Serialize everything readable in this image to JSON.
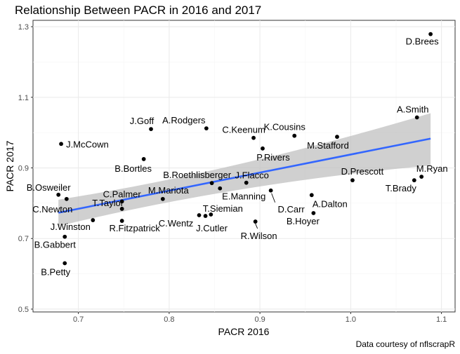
{
  "chart_data": {
    "type": "scatter",
    "title": "Relationship Between PACR in 2016 and 2017",
    "xlabel": "PACR 2016",
    "ylabel": "PACR 2017",
    "caption": "Data courtesy of nflscrapR",
    "xlim": [
      0.65,
      1.115
    ],
    "ylim": [
      0.492,
      1.318
    ],
    "x_ticks": [
      0.7,
      0.8,
      0.9,
      1.0,
      1.1
    ],
    "x_tick_labels": [
      "0.7",
      "0.8",
      "0.9",
      "1.0",
      "1.1"
    ],
    "y_ticks": [
      0.5,
      0.7,
      0.9,
      1.1,
      1.3
    ],
    "y_tick_labels": [
      "0.5",
      "0.7",
      "0.9",
      "1.1",
      "1.3"
    ],
    "grid": true,
    "colors": {
      "panel": "#ffffff",
      "grid_major": "#ebebeb",
      "grid_minor": "#f5f5f5",
      "border": "#333333",
      "point": "#000000",
      "fit_line": "#3366ff",
      "ribbon": "#bebebe"
    },
    "series": [
      {
        "points": [
          {
            "label": "D.Brees",
            "x": 1.088,
            "y": 1.279
          },
          {
            "label": "A.Smith",
            "x": 1.073,
            "y": 1.043
          },
          {
            "label": "M.Ryan",
            "x": 1.078,
            "y": 0.875
          },
          {
            "label": "T.Brady",
            "x": 1.07,
            "y": 0.865
          },
          {
            "label": "D.Prescott",
            "x": 1.002,
            "y": 0.865
          },
          {
            "label": "M.Stafford",
            "x": 0.985,
            "y": 0.988
          },
          {
            "label": "K.Cousins",
            "x": 0.938,
            "y": 0.991
          },
          {
            "label": "C.Keenum",
            "x": 0.893,
            "y": 0.985
          },
          {
            "label": "P.Rivers",
            "x": 0.903,
            "y": 0.955
          },
          {
            "label": "A.Rodgers",
            "x": 0.841,
            "y": 1.012
          },
          {
            "label": "J.Goff",
            "x": 0.78,
            "y": 1.01
          },
          {
            "label": "B.Bortles",
            "x": 0.772,
            "y": 0.925
          },
          {
            "label": "J.McCown",
            "x": 0.681,
            "y": 0.968
          },
          {
            "label": "B.Roethlisberger",
            "x": 0.847,
            "y": 0.857
          },
          {
            "label": "J.Flacco",
            "x": 0.885,
            "y": 0.858
          },
          {
            "label": "E.Manning",
            "x": 0.856,
            "y": 0.842
          },
          {
            "label": "D.Carr",
            "x": 0.912,
            "y": 0.836
          },
          {
            "label": "A.Dalton",
            "x": 0.957,
            "y": 0.823
          },
          {
            "label": "B.Hoyer",
            "x": 0.959,
            "y": 0.772
          },
          {
            "label": "M.Mariota",
            "x": 0.793,
            "y": 0.812
          },
          {
            "label": "C.Palmer",
            "x": 0.748,
            "y": 0.805
          },
          {
            "label": "T.Taylor",
            "x": 0.748,
            "y": 0.784
          },
          {
            "label": "C.Wentz",
            "x": 0.833,
            "y": 0.766
          },
          {
            "label": "T.Siemian",
            "x": 0.846,
            "y": 0.768
          },
          {
            "label": "J.Cutler",
            "x": 0.84,
            "y": 0.764
          },
          {
            "label": "R.Wilson",
            "x": 0.895,
            "y": 0.748
          },
          {
            "label": "B.Osweiler",
            "x": 0.678,
            "y": 0.824
          },
          {
            "label": "C.Newton",
            "x": 0.687,
            "y": 0.812
          },
          {
            "label": "J.Winston",
            "x": 0.716,
            "y": 0.752
          },
          {
            "label": "R.Fitzpatrick",
            "x": 0.748,
            "y": 0.75
          },
          {
            "label": "B.Gabbert",
            "x": 0.685,
            "y": 0.705
          },
          {
            "label": "B.Petty",
            "x": 0.685,
            "y": 0.63
          }
        ]
      }
    ],
    "fit": {
      "method": "linear",
      "x": [
        0.678,
        1.088
      ],
      "y": [
        0.773,
        0.983
      ],
      "ribbon_upper": [
        0.81,
        1.055
      ],
      "ribbon_lower": [
        0.735,
        0.907
      ],
      "ribbon_mid": {
        "x": 0.87,
        "upper": 0.888,
        "lower": 0.855
      }
    }
  }
}
